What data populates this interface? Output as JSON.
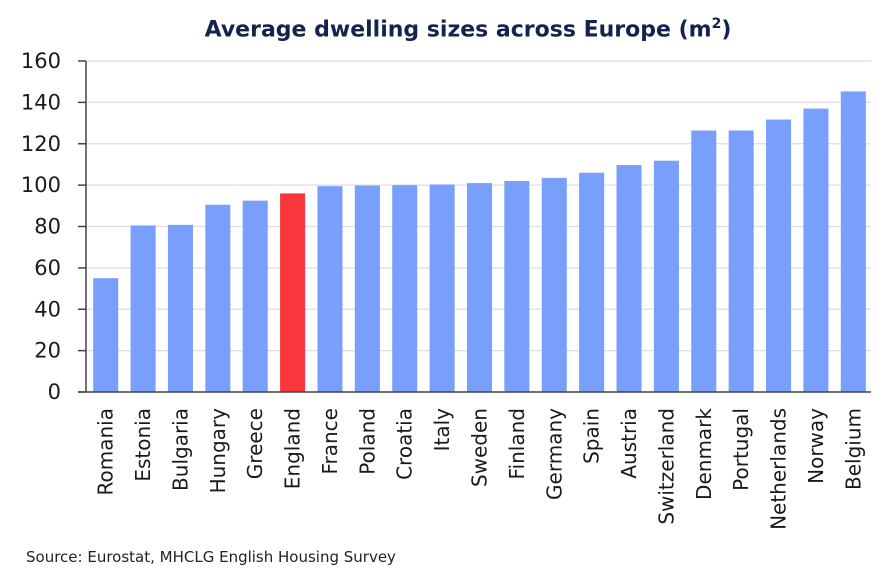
{
  "chart_data": {
    "type": "bar",
    "title": "Average dwelling sizes across Europe (m",
    "title_superscript": "2",
    "title_suffix": ")",
    "xlabel": "",
    "ylabel": "",
    "ylim": [
      0,
      160
    ],
    "yticks": [
      0,
      20,
      40,
      60,
      80,
      100,
      120,
      140,
      160
    ],
    "grid": true,
    "legend": "none",
    "categories": [
      "Romania",
      "Estonia",
      "Bulgaria",
      "Hungary",
      "Greece",
      "England",
      "France",
      "Poland",
      "Croatia",
      "Italy",
      "Sweden",
      "Finland",
      "Germany",
      "Spain",
      "Austria",
      "Switzerland",
      "Denmark",
      "Portugal",
      "Netherlands",
      "Norway",
      "Belgium"
    ],
    "values": [
      55,
      80.5,
      80.8,
      90.5,
      92.5,
      96,
      99.5,
      99.8,
      100,
      100.3,
      101,
      102,
      103.5,
      106,
      109.7,
      111.8,
      126.4,
      126.4,
      131.7,
      137,
      145.3
    ],
    "highlight": "England",
    "colors": {
      "bar": "#779ffb",
      "highlight": "#f9383d",
      "title": "#14234e",
      "grid": "#dedede",
      "axis": "#444444"
    },
    "source": "Source: Eurostat, MHCLG English Housing Survey"
  }
}
